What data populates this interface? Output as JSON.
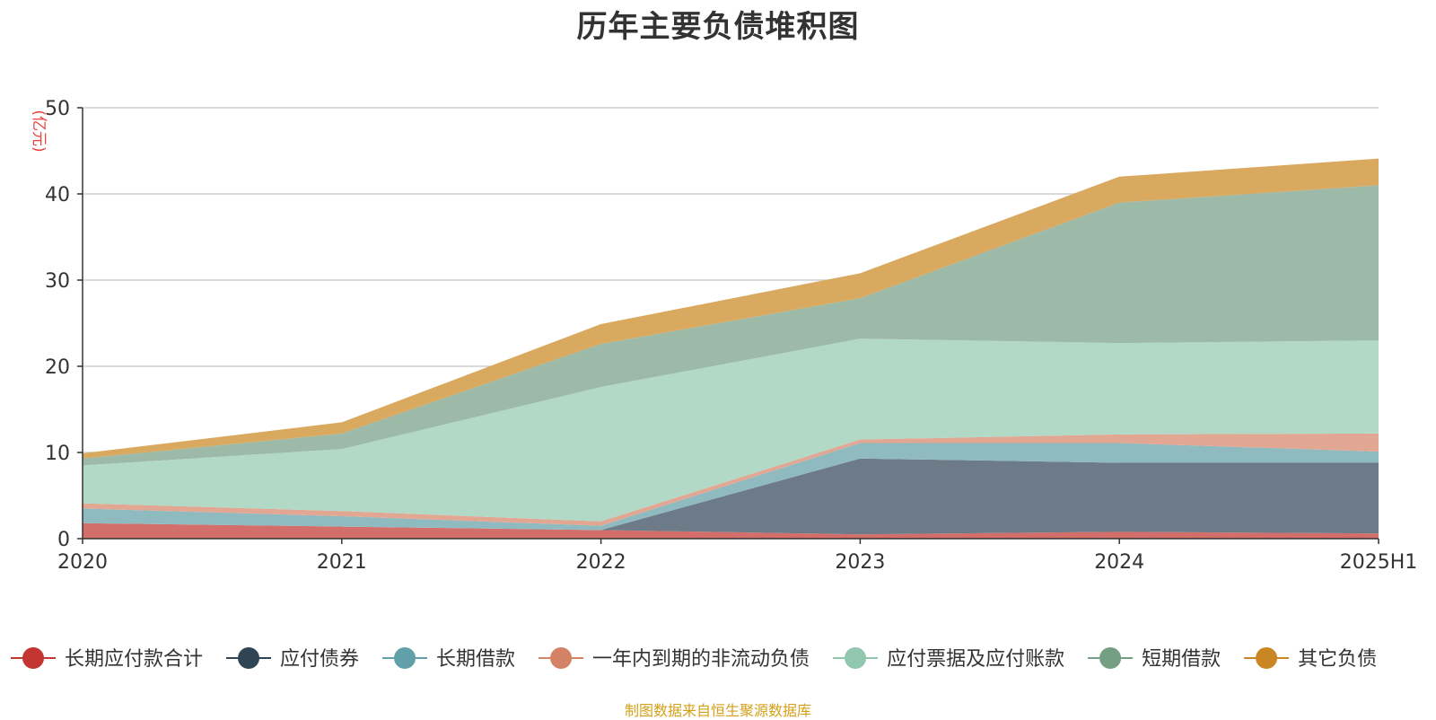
{
  "chart_data": {
    "type": "area",
    "title": "历年主要负债堆积图",
    "ylabel": "(亿元)",
    "xlabel": "",
    "categories": [
      "2020",
      "2021",
      "2022",
      "2023",
      "2024",
      "2025H1"
    ],
    "ylim": [
      0,
      50
    ],
    "yticks": [
      0,
      10,
      20,
      30,
      40,
      50
    ],
    "stacked": true,
    "grid": true,
    "legend_position": "bottom",
    "series": [
      {
        "name": "长期应付款合计",
        "color": "#c23531",
        "area_color": "#d46e6b",
        "values": [
          1.8,
          1.4,
          1.0,
          0.5,
          0.8,
          0.6
        ]
      },
      {
        "name": "应付债券",
        "color": "#2f4554",
        "area_color": "#6c7b87",
        "values": [
          0.0,
          0.0,
          0.0,
          8.8,
          8.0,
          8.2
        ]
      },
      {
        "name": "长期借款",
        "color": "#61a0a8",
        "area_color": "#8fbac0",
        "values": [
          1.7,
          1.2,
          0.5,
          1.8,
          2.3,
          1.3
        ]
      },
      {
        "name": "一年内到期的非流动负债",
        "color": "#d48265",
        "area_color": "#e2a792",
        "values": [
          0.6,
          0.6,
          0.5,
          0.4,
          1.0,
          2.1
        ]
      },
      {
        "name": "应付票据及应付账款",
        "color": "#91c7ae",
        "area_color": "#b2d8c6",
        "values": [
          4.4,
          7.2,
          15.6,
          11.7,
          10.6,
          10.8
        ]
      },
      {
        "name": "短期借款",
        "color": "#749f83",
        "area_color": "#9db9a7",
        "values": [
          0.8,
          1.8,
          5.0,
          4.7,
          16.3,
          18.0
        ]
      },
      {
        "name": "其它负债",
        "color": "#ca8622",
        "area_color": "#d9a95f",
        "values": [
          0.6,
          1.3,
          2.3,
          2.9,
          3.0,
          3.1
        ]
      }
    ]
  },
  "footer": {
    "source": "制图数据来自恒生聚源数据库"
  }
}
